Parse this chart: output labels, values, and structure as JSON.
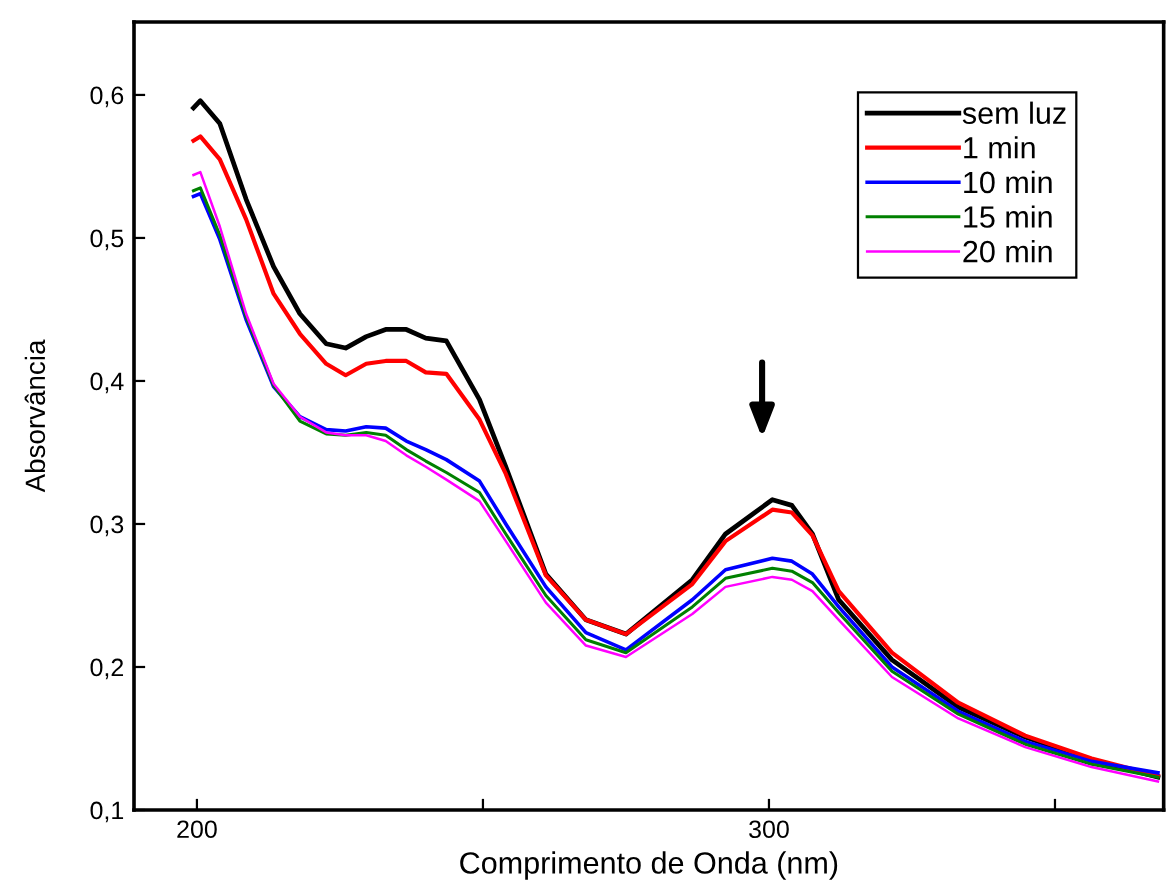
{
  "chart_data": {
    "type": "line",
    "xlabel": "Comprimento de Onda (nm)",
    "ylabel": "Absorvância",
    "x": [
      199.4,
      200.6,
      204,
      208.6,
      213.4,
      218,
      222.6,
      226,
      229.6,
      233,
      236.6,
      240,
      243.6,
      249.4,
      254,
      261,
      268,
      275,
      286.6,
      292.4,
      300.6,
      304,
      307.6,
      312.2,
      321.5,
      333.1,
      344.8,
      356.4,
      368
    ],
    "series": [
      {
        "name": "sem luz",
        "color": "#000000",
        "values": [
          0.591,
          0.596,
          0.58,
          0.527,
          0.48,
          0.447,
          0.426,
          0.423,
          0.431,
          0.436,
          0.436,
          0.43,
          0.428,
          0.387,
          0.34,
          0.265,
          0.233,
          0.223,
          0.261,
          0.293,
          0.317,
          0.313,
          0.293,
          0.247,
          0.205,
          0.172,
          0.151,
          0.135,
          0.123
        ]
      },
      {
        "name": "1 min",
        "color": "#ff0000",
        "values": [
          0.568,
          0.571,
          0.555,
          0.513,
          0.461,
          0.433,
          0.412,
          0.404,
          0.412,
          0.414,
          0.414,
          0.406,
          0.405,
          0.373,
          0.335,
          0.264,
          0.233,
          0.223,
          0.258,
          0.288,
          0.31,
          0.308,
          0.292,
          0.253,
          0.21,
          0.175,
          0.152,
          0.136,
          0.124
        ]
      },
      {
        "name": "10 min",
        "color": "#0000ff",
        "values": [
          0.529,
          0.531,
          0.499,
          0.443,
          0.396,
          0.375,
          0.366,
          0.365,
          0.368,
          0.367,
          0.358,
          0.352,
          0.345,
          0.33,
          0.3,
          0.256,
          0.224,
          0.212,
          0.247,
          0.268,
          0.276,
          0.274,
          0.265,
          0.242,
          0.2,
          0.169,
          0.148,
          0.134,
          0.126
        ]
      },
      {
        "name": "15 min",
        "color": "#008000",
        "values": [
          0.533,
          0.535,
          0.502,
          0.445,
          0.397,
          0.372,
          0.363,
          0.362,
          0.364,
          0.362,
          0.352,
          0.344,
          0.336,
          0.322,
          0.293,
          0.25,
          0.219,
          0.21,
          0.242,
          0.262,
          0.269,
          0.267,
          0.259,
          0.238,
          0.197,
          0.167,
          0.146,
          0.132,
          0.123
        ]
      },
      {
        "name": "20 min",
        "color": "#ff00ff",
        "values": [
          0.544,
          0.546,
          0.508,
          0.447,
          0.398,
          0.375,
          0.364,
          0.362,
          0.362,
          0.358,
          0.348,
          0.34,
          0.331,
          0.316,
          0.288,
          0.245,
          0.215,
          0.207,
          0.237,
          0.256,
          0.263,
          0.261,
          0.253,
          0.233,
          0.193,
          0.164,
          0.144,
          0.13,
          0.12
        ]
      }
    ],
    "xlim": [
      189,
      369
    ],
    "xticks": [
      200,
      {
        "value": 250,
        "label": null
      },
      300,
      {
        "value": 350,
        "label": null
      }
    ],
    "ylim": [
      0.1,
      0.651
    ],
    "yticks": [
      {
        "value": 0.1,
        "label": "0,1"
      },
      {
        "value": 0.2,
        "label": "0,2"
      },
      {
        "value": 0.3,
        "label": "0,3"
      },
      {
        "value": 0.4,
        "label": "0,4"
      },
      {
        "value": 0.5,
        "label": "0,5"
      },
      {
        "value": 0.6,
        "label": "0,6"
      }
    ],
    "grid": false,
    "legend": "top right",
    "marker": "none",
    "line_style": "solid"
  }
}
